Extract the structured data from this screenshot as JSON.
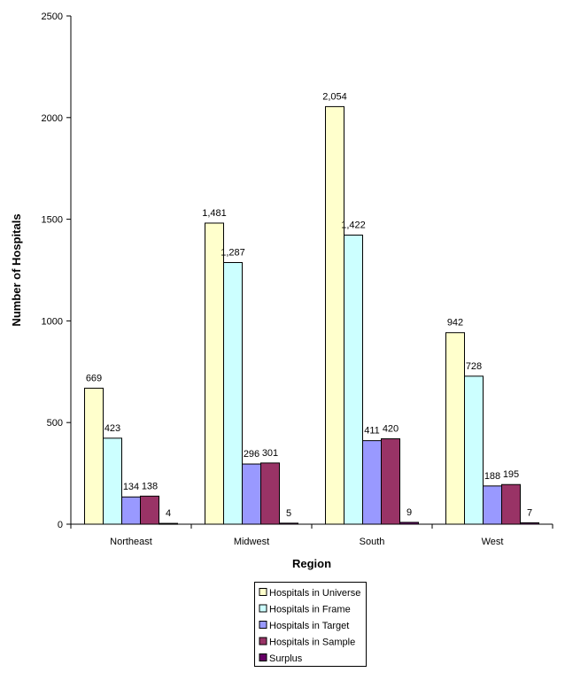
{
  "chart_data": {
    "type": "bar",
    "title": "",
    "xlabel": "Region",
    "ylabel": "Number of Hospitals",
    "ylim": [
      0,
      2500
    ],
    "yticks": [
      0,
      500,
      1000,
      1500,
      2000,
      2500
    ],
    "grid": false,
    "legend_placement": "bottom",
    "categories": [
      "Northeast",
      "Midwest",
      "South",
      "West"
    ],
    "series": [
      {
        "name": "Hospitals in Universe",
        "color": "#FFFFCC",
        "values": [
          669,
          1481,
          2054,
          942
        ],
        "labels": [
          "669",
          "1,481",
          "2,054",
          "942"
        ]
      },
      {
        "name": "Hospitals in Frame",
        "color": "#CCFFFF",
        "values": [
          423,
          1287,
          1422,
          728
        ],
        "labels": [
          "423",
          "1,287",
          "1,422",
          "728"
        ]
      },
      {
        "name": "Hospitals in Target",
        "color": "#9999FF",
        "values": [
          134,
          296,
          411,
          188
        ],
        "labels": [
          "134",
          "296",
          "411",
          "188"
        ]
      },
      {
        "name": "Hospitals in Sample",
        "color": "#993366",
        "values": [
          138,
          301,
          420,
          195
        ],
        "labels": [
          "138",
          "301",
          "420",
          "195"
        ]
      },
      {
        "name": "Surplus",
        "color": "#660066",
        "values": [
          4,
          5,
          9,
          7
        ],
        "labels": [
          "4",
          "5",
          "9",
          "7"
        ]
      }
    ]
  }
}
